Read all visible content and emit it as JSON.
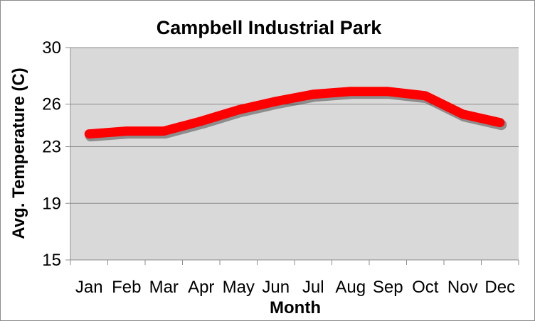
{
  "chart_data": {
    "type": "line",
    "title": "Campbell Industrial Park",
    "xlabel": "Month",
    "ylabel": "Avg. Temperature (C)",
    "categories": [
      "Jan",
      "Feb",
      "Mar",
      "Apr",
      "May",
      "Jun",
      "Jul",
      "Aug",
      "Sep",
      "Oct",
      "Nov",
      "Dec"
    ],
    "series": [
      {
        "values": [
          23.9,
          24.1,
          24.1,
          24.8,
          25.6,
          26.2,
          26.7,
          26.9,
          26.9,
          26.6,
          25.3,
          24.7
        ]
      }
    ],
    "ylim": [
      15,
      30
    ],
    "yticks": [
      15,
      19,
      23,
      26,
      30
    ],
    "grid": true,
    "legend": "none",
    "colors": {
      "line": "#ff0000",
      "plot_background": "#d9d9d9",
      "gridline": "#8c8c8c"
    }
  }
}
